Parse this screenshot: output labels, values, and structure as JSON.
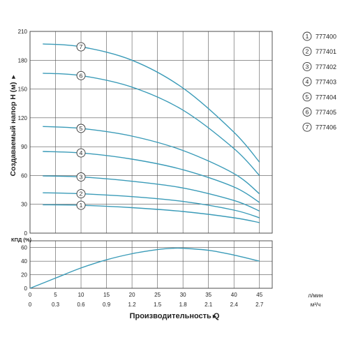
{
  "chart_data": [
    {
      "type": "line",
      "ylabel": "Создаваемый напор H (м)",
      "ylim": [
        0,
        210
      ],
      "yticks": [
        0,
        30,
        60,
        90,
        120,
        150,
        180,
        210
      ],
      "xlim": [
        0,
        47.5
      ],
      "xticks": [
        0,
        5,
        10,
        15,
        20,
        25,
        30,
        35,
        40,
        45
      ],
      "grid": true,
      "legend_position": "right",
      "line_color": "#3a9bb8",
      "series": [
        {
          "name": "777400",
          "marker": "1",
          "marker_x": 10,
          "x": [
            2.5,
            10,
            20,
            30,
            40,
            45
          ],
          "y": [
            29.5,
            29,
            26.5,
            22.5,
            16,
            11
          ]
        },
        {
          "name": "777401",
          "marker": "2",
          "marker_x": 10,
          "x": [
            2.5,
            10,
            20,
            30,
            40,
            45
          ],
          "y": [
            42,
            41,
            38,
            33,
            24,
            16
          ]
        },
        {
          "name": "777402",
          "marker": "3",
          "marker_x": 10,
          "x": [
            2.5,
            10,
            20,
            30,
            40,
            45
          ],
          "y": [
            59.5,
            58.5,
            54,
            47,
            34,
            23
          ]
        },
        {
          "name": "777403",
          "marker": "4",
          "marker_x": 10,
          "x": [
            2.5,
            10,
            20,
            30,
            40,
            45
          ],
          "y": [
            85,
            83.5,
            77,
            66,
            48,
            32
          ]
        },
        {
          "name": "777404",
          "marker": "5",
          "marker_x": 10,
          "x": [
            2.5,
            10,
            20,
            30,
            40,
            45
          ],
          "y": [
            111,
            109,
            101,
            86,
            62,
            41
          ]
        },
        {
          "name": "777405",
          "marker": "6",
          "marker_x": 10,
          "x": [
            2.5,
            10,
            20,
            30,
            40,
            45
          ],
          "y": [
            166.5,
            164,
            152,
            128,
            88,
            60
          ]
        },
        {
          "name": "777406",
          "marker": "7",
          "marker_x": 10,
          "x": [
            2.5,
            10,
            20,
            30,
            40,
            45
          ],
          "y": [
            197,
            194,
            180,
            151,
            105,
            74
          ]
        }
      ]
    },
    {
      "type": "line",
      "ylabel": "КПД (%)",
      "ylim": [
        0,
        70
      ],
      "yticks": [
        0,
        20,
        40,
        60
      ],
      "xlim": [
        0,
        47.5
      ],
      "xticks": [
        0,
        5,
        10,
        15,
        20,
        25,
        30,
        35,
        40,
        45
      ],
      "x_unit": "л/мин",
      "x2ticks": [
        "0",
        "0.3",
        "0.6",
        "0.9",
        "1.2",
        "1.5",
        "1.8",
        "2.1",
        "2.4",
        "2.7"
      ],
      "x2_unit": "м³/ч",
      "xlabel": "Производительность Q",
      "grid": true,
      "line_color": "#3a9bb8",
      "series": [
        {
          "x": [
            0,
            5,
            10,
            15,
            20,
            25,
            28,
            30,
            35,
            40,
            45
          ],
          "y": [
            0,
            15,
            30,
            42,
            51,
            57,
            59,
            59,
            56,
            49,
            40
          ]
        }
      ]
    }
  ]
}
